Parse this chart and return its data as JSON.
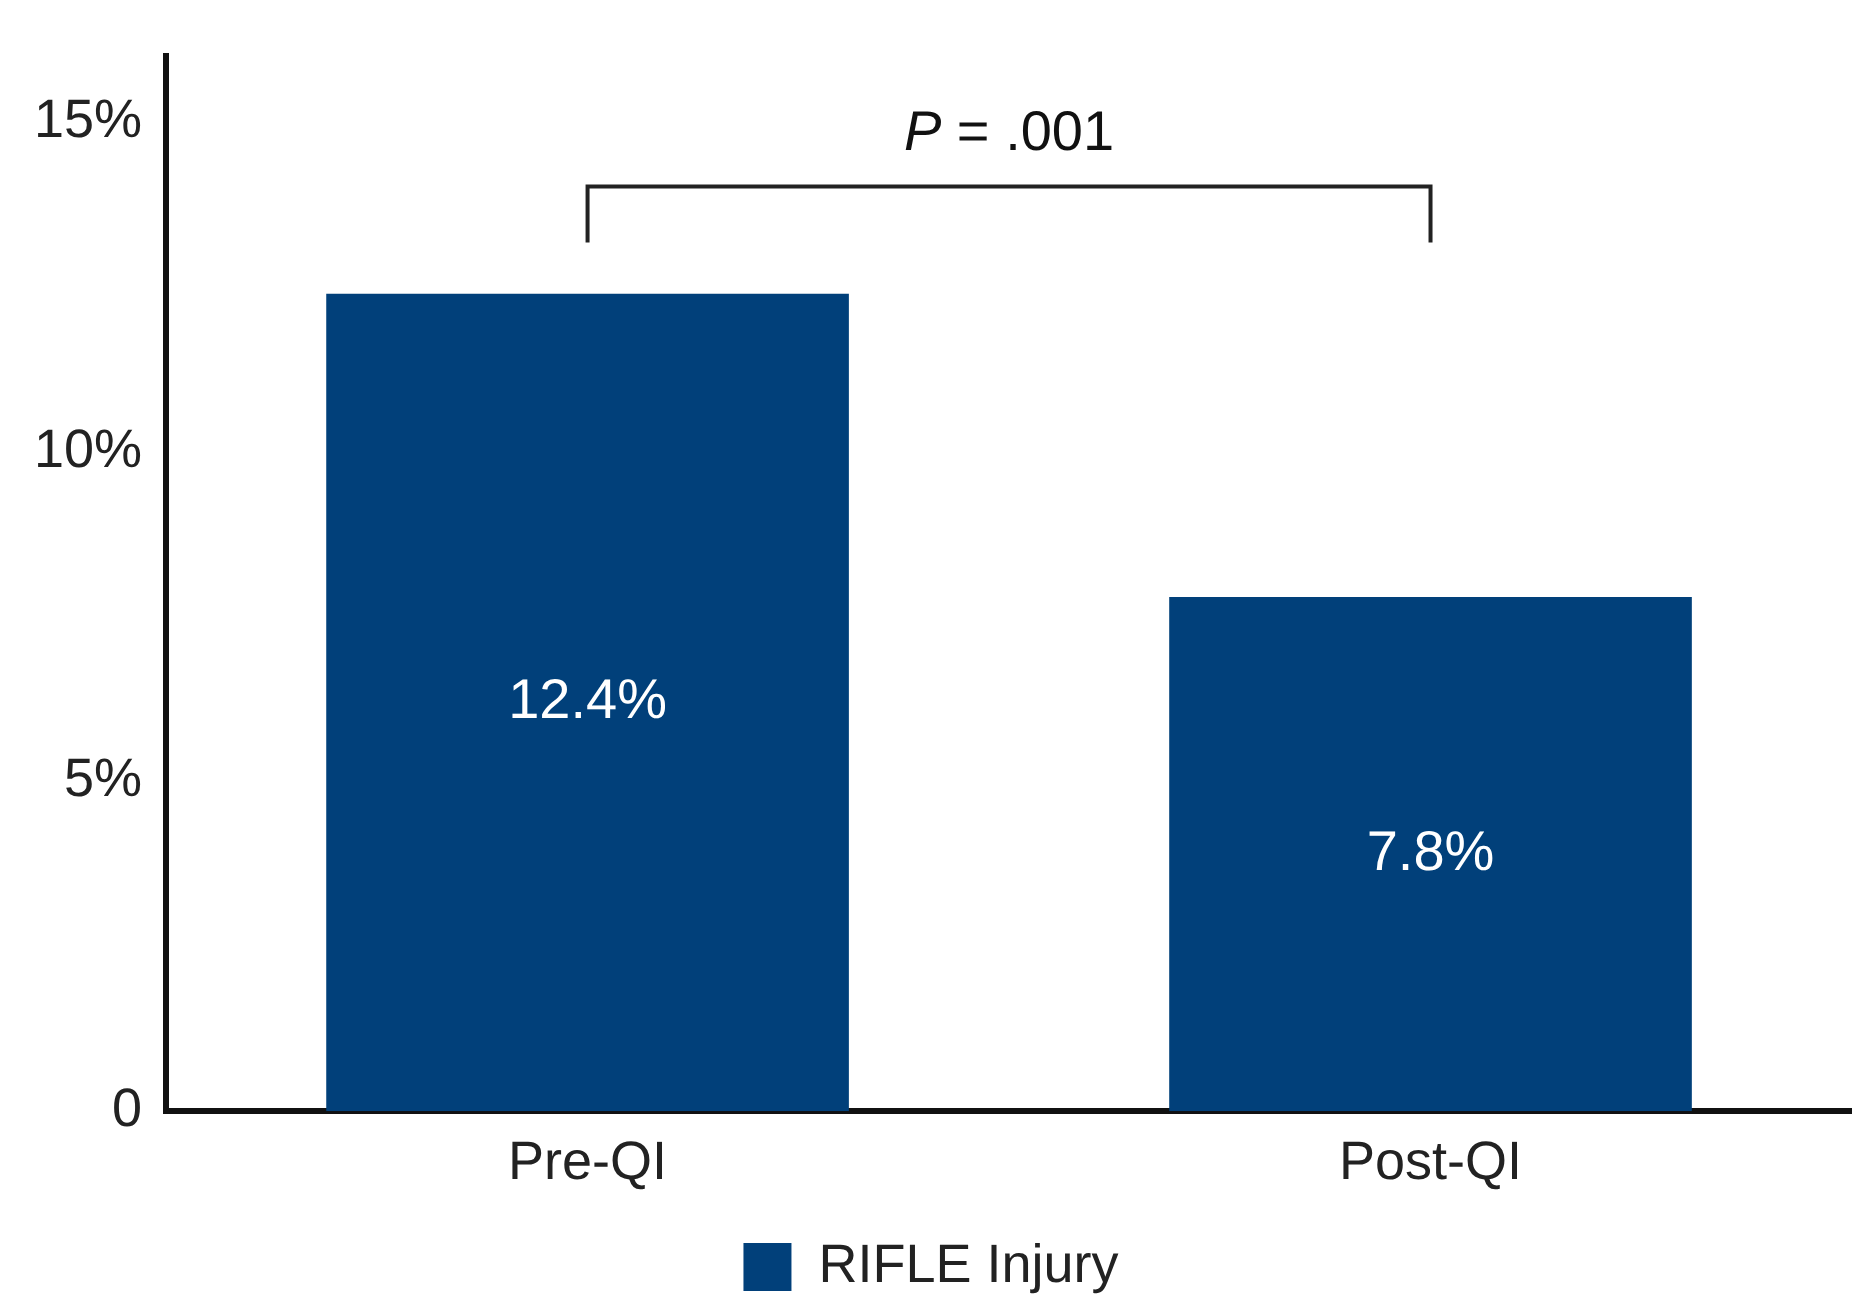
{
  "chart_data": {
    "type": "bar",
    "categories": [
      "Pre-QI",
      "Post-QI"
    ],
    "series": [
      {
        "name": "RIFLE Injury",
        "color": "#01407a",
        "values": [
          12.4,
          7.8
        ]
      }
    ],
    "ylim": [
      0,
      16
    ],
    "yticks": [
      0,
      {
        "value": 5,
        "label": "5%"
      },
      {
        "value": 10,
        "label": "10%"
      },
      {
        "value": 15,
        "label": "15%"
      }
    ],
    "value_labels": [
      "12.4%",
      "7.8%"
    ],
    "annotations": [
      "P = .001"
    ],
    "grid": false,
    "legend": "bottom"
  }
}
